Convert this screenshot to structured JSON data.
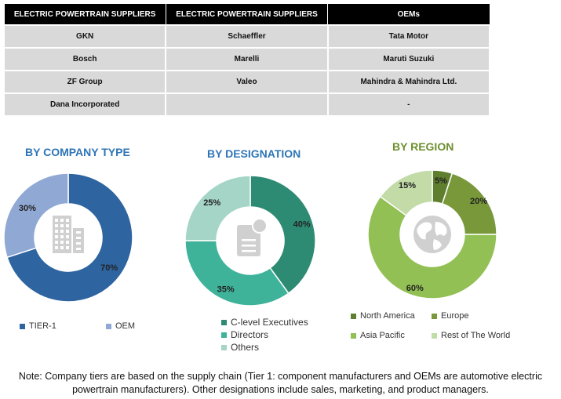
{
  "table": {
    "headers": [
      "ELECTRIC POWERTRAIN SUPPLIERS",
      "ELECTRIC POWERTRAIN SUPPLIERS",
      "OEMs"
    ],
    "rows": [
      [
        "GKN",
        "Schaeffler",
        "Tata Motor"
      ],
      [
        "Bosch",
        "Marelli",
        "Maruti Suzuki"
      ],
      [
        "ZF Group",
        "Valeo",
        "Mahindra & Mahindra Ltd."
      ],
      [
        "Dana Incorporated",
        "",
        "-"
      ]
    ]
  },
  "chart_data": [
    {
      "type": "pie",
      "title": "BY COMPANY TYPE",
      "title_color": "#2e75b6",
      "icon": "building-icon",
      "categories": [
        "TIER-1",
        "OEM"
      ],
      "values": [
        70,
        30
      ],
      "data_labels": [
        "70%",
        "30%"
      ],
      "colors": [
        "#2e64a0",
        "#8fa9d4"
      ],
      "legend_position": "bottom"
    },
    {
      "type": "pie",
      "title": "BY DESIGNATION",
      "title_color": "#2e75b6",
      "icon": "document-icon",
      "categories": [
        "C-level Executives",
        "Directors",
        "Others"
      ],
      "values": [
        40,
        35,
        25
      ],
      "data_labels": [
        "40%",
        "35%",
        "25%"
      ],
      "colors": [
        "#2e8b73",
        "#3fb39a",
        "#a5d5c7"
      ],
      "legend_position": "bottom"
    },
    {
      "type": "pie",
      "title": "BY REGION",
      "title_color": "#6d8f2e",
      "icon": "globe-icon",
      "categories": [
        "North America",
        "Europe",
        "Asia Pacific",
        "Rest of The World"
      ],
      "values": [
        5,
        20,
        60,
        15
      ],
      "data_labels": [
        "5%",
        "20%",
        "60%",
        "15%"
      ],
      "colors": [
        "#5f7f2f",
        "#78983a",
        "#92c054",
        "#c2dba7"
      ],
      "legend_position": "bottom"
    }
  ],
  "note": "Note: Company tiers are based on the supply chain (Tier 1: component manufacturers and OEMs are automotive electric powertrain manufacturers). Other designations include sales, marketing, and product managers."
}
